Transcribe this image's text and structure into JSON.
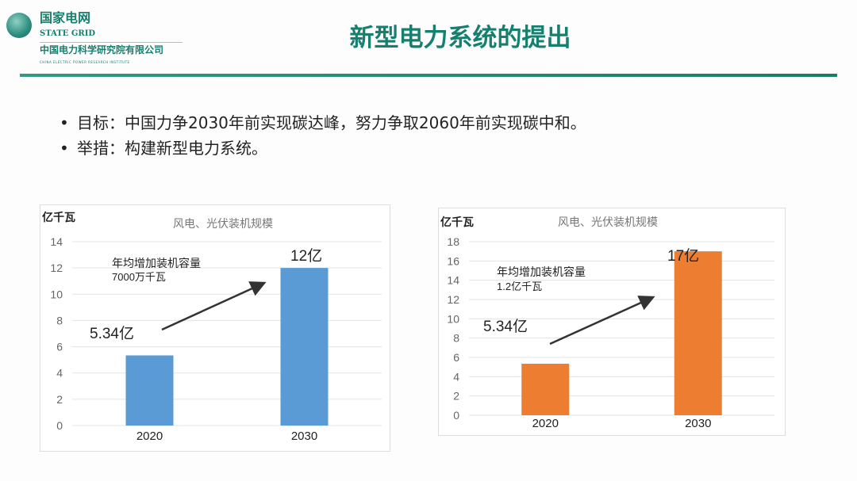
{
  "header": {
    "logo_cn": "国家电网",
    "logo_en": "STATE GRID",
    "org_cn": "中国电力科学研究院有限公司",
    "org_en": "CHINA ELECTRIC POWER RESEARCH INSTITUTE",
    "title": "新型电力系统的提出"
  },
  "bullets": [
    "目标：中国力争2030年前实现碳达峰，努力争取2060年前实现碳中和。",
    "举措：构建新型电力系统。"
  ],
  "colors": {
    "accent": "#16806f",
    "blue": "#5b9bd5",
    "orange": "#ed7d31"
  },
  "chart_data": [
    {
      "type": "bar",
      "title": "风电、光伏装机规模",
      "ylabel": "亿千瓦",
      "xlabel": "",
      "categories": [
        "2020",
        "2030"
      ],
      "values": [
        5.34,
        12
      ],
      "ylim": [
        0,
        14
      ],
      "yticks": [
        0,
        2,
        4,
        6,
        8,
        10,
        12,
        14
      ],
      "grid": true,
      "color": "#5b9bd5",
      "data_labels": [
        "5.34亿",
        "12亿"
      ],
      "annotation": [
        "年均增加装机容量",
        "7000万千瓦"
      ]
    },
    {
      "type": "bar",
      "title": "风电、光伏装机规模",
      "ylabel": "亿千瓦",
      "xlabel": "",
      "categories": [
        "2020",
        "2030"
      ],
      "values": [
        5.34,
        17
      ],
      "ylim": [
        0,
        18
      ],
      "yticks": [
        0,
        2,
        4,
        6,
        8,
        10,
        12,
        14,
        16,
        18
      ],
      "grid": true,
      "color": "#ed7d31",
      "data_labels": [
        "5.34亿",
        "17亿"
      ],
      "annotation": [
        "年均增加装机容量",
        "1.2亿千瓦"
      ]
    }
  ]
}
